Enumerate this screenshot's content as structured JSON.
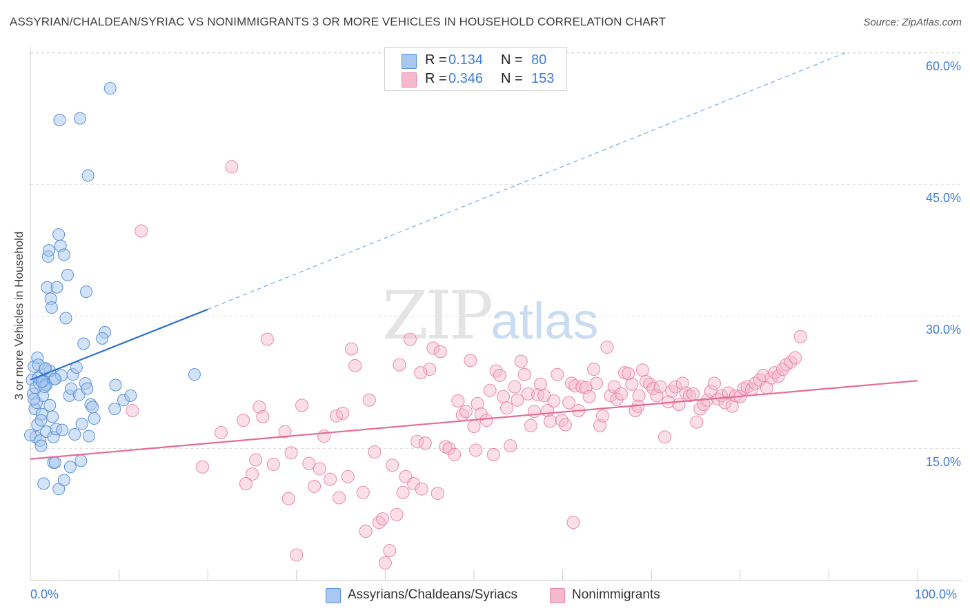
{
  "title": "ASSYRIAN/CHALDEAN/SYRIAC VS NONIMMIGRANTS 3 OR MORE VEHICLES IN HOUSEHOLD CORRELATION CHART",
  "source": "Source: ZipAtlas.com",
  "watermark": {
    "zip": "ZIP",
    "atlas": "atlas"
  },
  "legend": {
    "series1": {
      "r_label": "R =",
      "r_value": "0.134",
      "n_label": "N =",
      "n_value": "80"
    },
    "series2": {
      "r_label": "R =",
      "r_value": "0.346",
      "n_label": "N =",
      "n_value": "153"
    }
  },
  "colors": {
    "blue_fill": "#a8c8f0",
    "blue_stroke": "#5a8fd6",
    "blue_line": "#2a6fd0",
    "pink_fill": "#f5b8cc",
    "pink_stroke": "#e888a8",
    "pink_line": "#e46c94",
    "tick_text": "#3d7dd6",
    "grid": "#dddddd"
  },
  "chart_data": {
    "type": "scatter",
    "title": "ASSYRIAN/CHALDEAN/SYRIAC VS NONIMMIGRANTS 3 OR MORE VEHICLES IN HOUSEHOLD CORRELATION CHART",
    "xlabel": "",
    "ylabel": "3 or more Vehicles in Household",
    "xlim": [
      0,
      100
    ],
    "ylim": [
      0,
      62
    ],
    "x_tick_labels": [
      "0.0%",
      "100.0%"
    ],
    "y_ticks": [
      15,
      30,
      45,
      60
    ],
    "y_tick_labels": [
      "15.0%",
      "30.0%",
      "45.0%",
      "60.0%"
    ],
    "grid": true,
    "legend_position": "top-center",
    "series": [
      {
        "name": "Assyrians/Chaldeans/Syriacs",
        "color": "#a8c8f0",
        "r": 0.134,
        "n": 80,
        "trend": {
          "x": [
            0,
            20,
            92
          ],
          "y": [
            22.8,
            30.8,
            60
          ]
        },
        "points": [
          [
            0.2,
            22.8
          ],
          [
            0.3,
            21.2
          ],
          [
            0.4,
            24.3
          ],
          [
            0.5,
            19.5
          ],
          [
            0.6,
            16.3
          ],
          [
            0.7,
            20.2
          ],
          [
            0.8,
            25.3
          ],
          [
            0.9,
            23.0
          ],
          [
            1.0,
            22.4
          ],
          [
            1.1,
            15.9
          ],
          [
            1.2,
            15.3
          ],
          [
            1.3,
            18.9
          ],
          [
            1.4,
            21.0
          ],
          [
            1.5,
            22.6
          ],
          [
            1.6,
            24.0
          ],
          [
            1.7,
            22.3
          ],
          [
            1.8,
            16.9
          ],
          [
            1.9,
            33.3
          ],
          [
            2.0,
            36.8
          ],
          [
            2.1,
            37.5
          ],
          [
            2.2,
            19.9
          ],
          [
            2.3,
            32.0
          ],
          [
            2.4,
            31.0
          ],
          [
            2.5,
            18.6
          ],
          [
            2.6,
            16.3
          ],
          [
            2.7,
            22.9
          ],
          [
            2.9,
            17.2
          ],
          [
            3.0,
            33.3
          ],
          [
            3.2,
            39.3
          ],
          [
            3.4,
            38.0
          ],
          [
            3.5,
            23.3
          ],
          [
            3.6,
            17.1
          ],
          [
            3.8,
            37.0
          ],
          [
            4.0,
            29.8
          ],
          [
            4.2,
            34.7
          ],
          [
            4.4,
            21.0
          ],
          [
            4.6,
            21.8
          ],
          [
            4.8,
            23.4
          ],
          [
            5.0,
            16.6
          ],
          [
            5.2,
            24.2
          ],
          [
            5.5,
            21.1
          ],
          [
            5.8,
            17.8
          ],
          [
            6.0,
            26.9
          ],
          [
            6.2,
            22.4
          ],
          [
            6.3,
            32.8
          ],
          [
            6.4,
            21.8
          ],
          [
            6.6,
            16.4
          ],
          [
            6.8,
            20.0
          ],
          [
            7.0,
            19.7
          ],
          [
            7.2,
            18.4
          ],
          [
            3.3,
            52.3
          ],
          [
            5.6,
            52.5
          ],
          [
            6.5,
            46.0
          ],
          [
            8.4,
            28.2
          ],
          [
            8.1,
            27.5
          ],
          [
            9.0,
            55.9
          ],
          [
            9.5,
            19.5
          ],
          [
            9.6,
            22.2
          ],
          [
            10.5,
            20.5
          ],
          [
            11.3,
            21.0
          ],
          [
            1.5,
            11.0
          ],
          [
            2.6,
            13.4
          ],
          [
            2.8,
            13.4
          ],
          [
            3.2,
            10.4
          ],
          [
            3.8,
            11.4
          ],
          [
            4.5,
            12.9
          ],
          [
            5.7,
            13.6
          ],
          [
            0.8,
            17.7
          ],
          [
            1.2,
            18.2
          ],
          [
            0.6,
            21.9
          ],
          [
            1.8,
            22.2
          ],
          [
            2.2,
            23.8
          ],
          [
            0.4,
            20.6
          ],
          [
            1.6,
            22.0
          ],
          [
            0.9,
            24.5
          ],
          [
            1.3,
            22.6
          ],
          [
            1.7,
            24.1
          ],
          [
            2.8,
            22.9
          ],
          [
            18.5,
            23.4
          ],
          [
            0.0,
            16.5
          ]
        ]
      },
      {
        "name": "Nonimmigrants",
        "color": "#f5b8cc",
        "r": 0.346,
        "n": 153,
        "trend": {
          "x": [
            0,
            100
          ],
          "y": [
            13.8,
            22.7
          ]
        },
        "points": [
          [
            22.7,
            47.0
          ],
          [
            12.5,
            39.7
          ],
          [
            11.5,
            19.3
          ],
          [
            19.4,
            12.9
          ],
          [
            21.5,
            16.8
          ],
          [
            24.0,
            18.2
          ],
          [
            24.3,
            11.0
          ],
          [
            25.0,
            12.1
          ],
          [
            25.4,
            13.7
          ],
          [
            25.8,
            19.7
          ],
          [
            26.2,
            18.6
          ],
          [
            26.7,
            27.4
          ],
          [
            27.4,
            13.2
          ],
          [
            28.7,
            16.9
          ],
          [
            29.1,
            9.3
          ],
          [
            29.4,
            14.5
          ],
          [
            30.0,
            2.9
          ],
          [
            30.6,
            19.9
          ],
          [
            31.4,
            13.3
          ],
          [
            32.0,
            10.7
          ],
          [
            32.6,
            12.7
          ],
          [
            33.1,
            16.4
          ],
          [
            33.8,
            11.5
          ],
          [
            34.5,
            18.7
          ],
          [
            34.8,
            9.4
          ],
          [
            35.2,
            19.0
          ],
          [
            35.8,
            11.8
          ],
          [
            36.2,
            26.3
          ],
          [
            36.6,
            24.4
          ],
          [
            37.5,
            10.0
          ],
          [
            37.8,
            5.6
          ],
          [
            38.2,
            20.5
          ],
          [
            38.8,
            14.6
          ],
          [
            39.3,
            6.6
          ],
          [
            39.7,
            7.0
          ],
          [
            40.0,
            2.0
          ],
          [
            40.5,
            3.4
          ],
          [
            40.8,
            13.1
          ],
          [
            41.3,
            7.5
          ],
          [
            41.6,
            24.5
          ],
          [
            42.0,
            10.0
          ],
          [
            42.3,
            11.8
          ],
          [
            42.8,
            27.4
          ],
          [
            43.2,
            11.0
          ],
          [
            43.6,
            15.8
          ],
          [
            44.1,
            10.4
          ],
          [
            44.5,
            15.6
          ],
          [
            45.0,
            24.0
          ],
          [
            45.4,
            26.4
          ],
          [
            45.9,
            9.9
          ],
          [
            46.2,
            26.0
          ],
          [
            46.8,
            15.2
          ],
          [
            47.2,
            15.0
          ],
          [
            47.8,
            14.3
          ],
          [
            48.2,
            20.4
          ],
          [
            48.7,
            18.8
          ],
          [
            49.1,
            19.2
          ],
          [
            49.6,
            25.0
          ],
          [
            50.0,
            17.5
          ],
          [
            50.4,
            20.1
          ],
          [
            50.8,
            18.9
          ],
          [
            51.4,
            18.2
          ],
          [
            51.8,
            21.6
          ],
          [
            52.2,
            14.3
          ],
          [
            52.5,
            23.8
          ],
          [
            52.9,
            23.3
          ],
          [
            53.3,
            20.9
          ],
          [
            53.7,
            19.6
          ],
          [
            54.1,
            15.3
          ],
          [
            54.6,
            22.0
          ],
          [
            54.9,
            20.5
          ],
          [
            55.3,
            24.9
          ],
          [
            55.7,
            23.4
          ],
          [
            56.1,
            21.2
          ],
          [
            56.4,
            17.6
          ],
          [
            56.8,
            19.2
          ],
          [
            57.2,
            21.1
          ],
          [
            57.5,
            22.3
          ],
          [
            57.9,
            21.0
          ],
          [
            58.3,
            19.3
          ],
          [
            58.6,
            18.1
          ],
          [
            59.0,
            20.4
          ],
          [
            59.4,
            23.4
          ],
          [
            59.9,
            18.2
          ],
          [
            60.3,
            17.7
          ],
          [
            60.7,
            20.2
          ],
          [
            61.0,
            22.4
          ],
          [
            61.4,
            22.1
          ],
          [
            61.8,
            19.3
          ],
          [
            62.2,
            22.0
          ],
          [
            62.6,
            21.9
          ],
          [
            63.0,
            20.9
          ],
          [
            63.5,
            24.0
          ],
          [
            63.8,
            22.4
          ],
          [
            64.2,
            17.6
          ],
          [
            64.5,
            18.7
          ],
          [
            65.0,
            26.5
          ],
          [
            65.4,
            21.0
          ],
          [
            65.8,
            22.0
          ],
          [
            66.1,
            20.6
          ],
          [
            66.6,
            21.2
          ],
          [
            67.0,
            23.6
          ],
          [
            67.4,
            23.5
          ],
          [
            67.8,
            22.3
          ],
          [
            68.2,
            19.3
          ],
          [
            68.6,
            21.0
          ],
          [
            69.0,
            23.9
          ],
          [
            69.4,
            22.6
          ],
          [
            69.8,
            22.3
          ],
          [
            70.2,
            21.8
          ],
          [
            70.6,
            21.0
          ],
          [
            71.0,
            22.0
          ],
          [
            71.5,
            16.3
          ],
          [
            71.9,
            20.3
          ],
          [
            72.3,
            21.5
          ],
          [
            72.7,
            22.0
          ],
          [
            73.1,
            20.0
          ],
          [
            73.5,
            22.4
          ],
          [
            73.9,
            21.3
          ],
          [
            74.3,
            21.0
          ],
          [
            74.7,
            21.2
          ],
          [
            75.1,
            18.0
          ],
          [
            75.5,
            19.5
          ],
          [
            75.9,
            20.0
          ],
          [
            76.3,
            20.5
          ],
          [
            76.7,
            21.5
          ],
          [
            77.1,
            22.4
          ],
          [
            77.5,
            20.6
          ],
          [
            77.9,
            21.0
          ],
          [
            78.3,
            20.2
          ],
          [
            78.7,
            21.3
          ],
          [
            79.1,
            19.8
          ],
          [
            79.5,
            21.0
          ],
          [
            80.0,
            20.9
          ],
          [
            80.4,
            21.8
          ],
          [
            80.8,
            22.0
          ],
          [
            81.3,
            21.7
          ],
          [
            81.7,
            22.4
          ],
          [
            82.2,
            22.8
          ],
          [
            82.6,
            23.3
          ],
          [
            83.0,
            21.9
          ],
          [
            83.5,
            23.0
          ],
          [
            83.9,
            23.6
          ],
          [
            84.3,
            23.2
          ],
          [
            84.8,
            24.0
          ],
          [
            85.2,
            24.5
          ],
          [
            85.7,
            24.8
          ],
          [
            86.2,
            25.3
          ],
          [
            86.8,
            27.7
          ],
          [
            68.5,
            19.8
          ],
          [
            61.2,
            6.6
          ],
          [
            44.0,
            23.6
          ],
          [
            50.2,
            14.8
          ]
        ]
      }
    ]
  },
  "bottom_legend": [
    {
      "label": "Assyrians/Chaldeans/Syriacs"
    },
    {
      "label": "Nonimmigrants"
    }
  ]
}
